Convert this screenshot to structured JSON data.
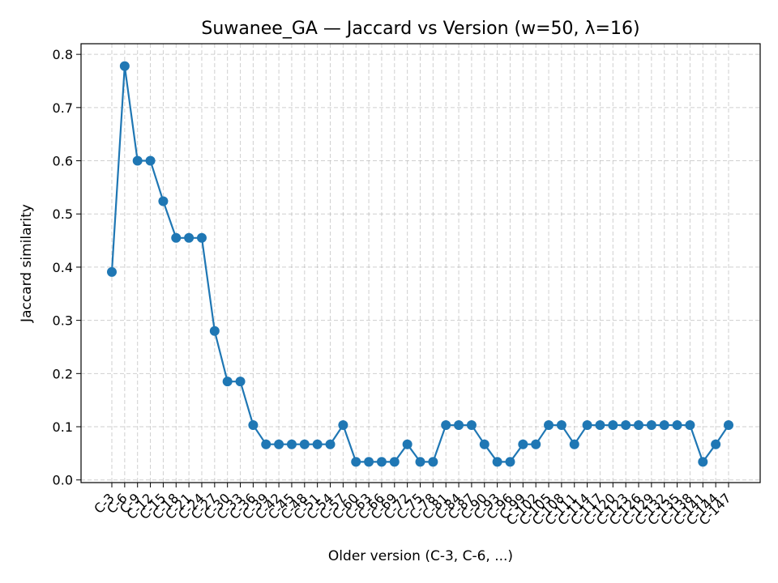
{
  "chart_data": {
    "type": "line",
    "title": "Suwanee_GA — Jaccard vs Version (w=50, λ=16)",
    "xlabel": "Older version (C-3, C-6, ...)",
    "ylabel": "Jaccard similarity",
    "ylim": [
      -0.005,
      0.82
    ],
    "yticks": [
      0.0,
      0.1,
      0.2,
      0.3,
      0.4,
      0.5,
      0.6,
      0.7,
      0.8
    ],
    "grid": true,
    "categories": [
      "C-3",
      "C-6",
      "C-9",
      "C-12",
      "C-15",
      "C-18",
      "C-21",
      "C-24",
      "C-27",
      "C-30",
      "C-33",
      "C-36",
      "C-39",
      "C-42",
      "C-45",
      "C-48",
      "C-51",
      "C-54",
      "C-57",
      "C-60",
      "C-63",
      "C-66",
      "C-69",
      "C-72",
      "C-75",
      "C-78",
      "C-81",
      "C-84",
      "C-87",
      "C-90",
      "C-93",
      "C-96",
      "C-99",
      "C-102",
      "C-105",
      "C-108",
      "C-111",
      "C-114",
      "C-117",
      "C-120",
      "C-123",
      "C-126",
      "C-129",
      "C-132",
      "C-135",
      "C-138",
      "C-141",
      "C-144",
      "C-147"
    ],
    "series": [
      {
        "values": [
          0.391,
          0.778,
          0.6,
          0.6,
          0.524,
          0.455,
          0.455,
          0.455,
          0.28,
          0.185,
          0.185,
          0.103,
          0.067,
          0.067,
          0.067,
          0.067,
          0.067,
          0.067,
          0.103,
          0.034,
          0.034,
          0.034,
          0.034,
          0.067,
          0.034,
          0.034,
          0.103,
          0.103,
          0.103,
          0.067,
          0.034,
          0.034,
          0.067,
          0.067,
          0.103,
          0.103,
          0.067,
          0.103,
          0.103,
          0.103,
          0.103,
          0.103,
          0.103,
          0.103,
          0.103,
          0.103,
          0.034,
          0.067,
          0.103
        ],
        "color": "#1f77b4"
      }
    ]
  }
}
